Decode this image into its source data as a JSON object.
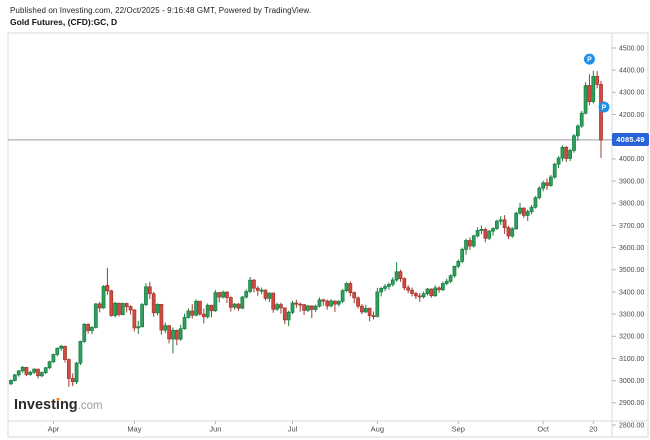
{
  "header": {
    "published_line": "Published on Investing.com, 22/Oct/2025 - 9:16:48 GMT, Powered by TradingView.",
    "instrument_line": "Gold Futures, (CFD):GC, D"
  },
  "logo": {
    "part1": "Invest",
    "part2": "i",
    "part3": "ng",
    "tld": ".com"
  },
  "chart_data": {
    "type": "candlestick",
    "title": "Gold Futures, (CFD):GC, D",
    "symbol": "(CFD):GC",
    "interval": "D",
    "ylim": [
      2800,
      4500
    ],
    "y_tick_step": 100,
    "grid": "off",
    "current_price": 4085.49,
    "current_price_label": "4085.49",
    "x_ticks": [
      {
        "label": "Apr",
        "index": 11
      },
      {
        "label": "May",
        "index": 32
      },
      {
        "label": "Jun",
        "index": 53
      },
      {
        "label": "Jul",
        "index": 73
      },
      {
        "label": "Aug",
        "index": 95
      },
      {
        "label": "Sep",
        "index": 116
      },
      {
        "label": "Oct",
        "index": 138
      },
      {
        "label": "20",
        "index": 151
      }
    ],
    "markers": [
      {
        "label": "P",
        "index": 150,
        "price": 4450,
        "dx": 0
      },
      {
        "label": "P",
        "index": 153,
        "price": 4234,
        "dx": 3
      }
    ],
    "colors": {
      "up_fill": "#2f9e5f",
      "up_border": "#177f40",
      "down_fill": "#d14b41",
      "down_border": "#a53830",
      "badge": "#2a62d8",
      "marker": "#1f8fe8",
      "price_line": "#9b9b9b",
      "axis_text": "#4a4a4a",
      "frame": "#d8d8d8"
    },
    "candles": [
      [
        2986,
        3006,
        2980,
        3001
      ],
      [
        3001,
        3030,
        2996,
        3026
      ],
      [
        3026,
        3048,
        3018,
        3044
      ],
      [
        3044,
        3066,
        3036,
        3060
      ],
      [
        3060,
        3062,
        3020,
        3028
      ],
      [
        3028,
        3044,
        3022,
        3038
      ],
      [
        3038,
        3056,
        3030,
        3052
      ],
      [
        3052,
        3054,
        3010,
        3022
      ],
      [
        3022,
        3042,
        3015,
        3036
      ],
      [
        3036,
        3062,
        3030,
        3058
      ],
      [
        3058,
        3090,
        3052,
        3085
      ],
      [
        3085,
        3122,
        3080,
        3118
      ],
      [
        3118,
        3150,
        3110,
        3146
      ],
      [
        3146,
        3162,
        3134,
        3155
      ],
      [
        3155,
        3158,
        3082,
        3095
      ],
      [
        3095,
        3100,
        2972,
        3010
      ],
      [
        3010,
        3032,
        2975,
        2995
      ],
      [
        2995,
        3085,
        2985,
        3079
      ],
      [
        3079,
        3180,
        3070,
        3177
      ],
      [
        3177,
        3260,
        3170,
        3254
      ],
      [
        3254,
        3258,
        3212,
        3226
      ],
      [
        3226,
        3246,
        3210,
        3240
      ],
      [
        3240,
        3350,
        3235,
        3346
      ],
      [
        3346,
        3356,
        3308,
        3328
      ],
      [
        3328,
        3430,
        3324,
        3425
      ],
      [
        3430,
        3509,
        3388,
        3405
      ],
      [
        3405,
        3410,
        3288,
        3294
      ],
      [
        3294,
        3356,
        3285,
        3349
      ],
      [
        3349,
        3352,
        3290,
        3298
      ],
      [
        3298,
        3352,
        3294,
        3348
      ],
      [
        3348,
        3352,
        3308,
        3334
      ],
      [
        3334,
        3340,
        3298,
        3319
      ],
      [
        3319,
        3322,
        3222,
        3238
      ],
      [
        3238,
        3270,
        3210,
        3243
      ],
      [
        3243,
        3350,
        3240,
        3343
      ],
      [
        3343,
        3440,
        3335,
        3423
      ],
      [
        3423,
        3446,
        3368,
        3392
      ],
      [
        3392,
        3400,
        3288,
        3306
      ],
      [
        3306,
        3348,
        3295,
        3344
      ],
      [
        3344,
        3346,
        3207,
        3228
      ],
      [
        3228,
        3262,
        3214,
        3248
      ],
      [
        3248,
        3250,
        3168,
        3188
      ],
      [
        3188,
        3240,
        3123,
        3227
      ],
      [
        3227,
        3230,
        3160,
        3187
      ],
      [
        3187,
        3252,
        3180,
        3234
      ],
      [
        3234,
        3302,
        3230,
        3285
      ],
      [
        3285,
        3326,
        3280,
        3314
      ],
      [
        3314,
        3345,
        3280,
        3295
      ],
      [
        3295,
        3366,
        3290,
        3358
      ],
      [
        3358,
        3360,
        3293,
        3300
      ],
      [
        3300,
        3325,
        3258,
        3288
      ],
      [
        3288,
        3348,
        3280,
        3340
      ],
      [
        3340,
        3342,
        3286,
        3315
      ],
      [
        3315,
        3408,
        3310,
        3397
      ],
      [
        3397,
        3400,
        3352,
        3377
      ],
      [
        3377,
        3406,
        3370,
        3399
      ],
      [
        3399,
        3404,
        3350,
        3375
      ],
      [
        3375,
        3380,
        3311,
        3331
      ],
      [
        3331,
        3350,
        3320,
        3345
      ],
      [
        3345,
        3350,
        3314,
        3327
      ],
      [
        3327,
        3382,
        3322,
        3377
      ],
      [
        3377,
        3412,
        3370,
        3402
      ],
      [
        3402,
        3468,
        3395,
        3453
      ],
      [
        3453,
        3458,
        3398,
        3417
      ],
      [
        3417,
        3426,
        3383,
        3407
      ],
      [
        3407,
        3420,
        3390,
        3408
      ],
      [
        3408,
        3412,
        3362,
        3371
      ],
      [
        3371,
        3398,
        3355,
        3395
      ],
      [
        3395,
        3397,
        3306,
        3322
      ],
      [
        3322,
        3352,
        3315,
        3343
      ],
      [
        3343,
        3352,
        3302,
        3328
      ],
      [
        3328,
        3330,
        3255,
        3274
      ],
      [
        3274,
        3316,
        3246,
        3308
      ],
      [
        3308,
        3360,
        3300,
        3350
      ],
      [
        3350,
        3365,
        3328,
        3345
      ],
      [
        3345,
        3352,
        3311,
        3343
      ],
      [
        3343,
        3346,
        3296,
        3317
      ],
      [
        3317,
        3342,
        3310,
        3337
      ],
      [
        3337,
        3340,
        3282,
        3321
      ],
      [
        3321,
        3342,
        3310,
        3336
      ],
      [
        3336,
        3375,
        3330,
        3364
      ],
      [
        3364,
        3370,
        3338,
        3359
      ],
      [
        3359,
        3366,
        3320,
        3337
      ],
      [
        3337,
        3368,
        3330,
        3359
      ],
      [
        3359,
        3362,
        3310,
        3345
      ],
      [
        3345,
        3362,
        3335,
        3358
      ],
      [
        3358,
        3412,
        3350,
        3406
      ],
      [
        3406,
        3444,
        3400,
        3438
      ],
      [
        3438,
        3448,
        3380,
        3397
      ],
      [
        3397,
        3402,
        3350,
        3373
      ],
      [
        3373,
        3380,
        3325,
        3336
      ],
      [
        3336,
        3345,
        3300,
        3310
      ],
      [
        3310,
        3342,
        3305,
        3326
      ],
      [
        3326,
        3330,
        3268,
        3293
      ],
      [
        3293,
        3312,
        3276,
        3290
      ],
      [
        3290,
        3418,
        3285,
        3400
      ],
      [
        3400,
        3422,
        3380,
        3416
      ],
      [
        3416,
        3436,
        3404,
        3425
      ],
      [
        3425,
        3442,
        3410,
        3434
      ],
      [
        3434,
        3466,
        3424,
        3454
      ],
      [
        3454,
        3534,
        3445,
        3491
      ],
      [
        3491,
        3500,
        3446,
        3460
      ],
      [
        3460,
        3466,
        3408,
        3419
      ],
      [
        3419,
        3430,
        3394,
        3408
      ],
      [
        3408,
        3420,
        3380,
        3393
      ],
      [
        3393,
        3400,
        3368,
        3382
      ],
      [
        3382,
        3396,
        3356,
        3378
      ],
      [
        3378,
        3402,
        3370,
        3392
      ],
      [
        3392,
        3418,
        3384,
        3413
      ],
      [
        3413,
        3416,
        3374,
        3383
      ],
      [
        3383,
        3430,
        3378,
        3418
      ],
      [
        3418,
        3426,
        3396,
        3410
      ],
      [
        3410,
        3446,
        3404,
        3438
      ],
      [
        3438,
        3460,
        3430,
        3448
      ],
      [
        3448,
        3480,
        3440,
        3473
      ],
      [
        3473,
        3518,
        3464,
        3516
      ],
      [
        3516,
        3546,
        3508,
        3538
      ],
      [
        3538,
        3600,
        3530,
        3592
      ],
      [
        3592,
        3640,
        3568,
        3632
      ],
      [
        3632,
        3646,
        3590,
        3607
      ],
      [
        3607,
        3658,
        3600,
        3653
      ],
      [
        3653,
        3692,
        3646,
        3677
      ],
      [
        3677,
        3700,
        3660,
        3682
      ],
      [
        3682,
        3690,
        3624,
        3642
      ],
      [
        3642,
        3680,
        3634,
        3674
      ],
      [
        3674,
        3692,
        3654,
        3686
      ],
      [
        3686,
        3726,
        3680,
        3719
      ],
      [
        3719,
        3742,
        3702,
        3725
      ],
      [
        3725,
        3746,
        3662,
        3690
      ],
      [
        3690,
        3698,
        3638,
        3652
      ],
      [
        3652,
        3692,
        3644,
        3685
      ],
      [
        3685,
        3762,
        3680,
        3755
      ],
      [
        3755,
        3802,
        3748,
        3778
      ],
      [
        3778,
        3782,
        3734,
        3745
      ],
      [
        3745,
        3772,
        3720,
        3762
      ],
      [
        3762,
        3792,
        3750,
        3782
      ],
      [
        3782,
        3832,
        3776,
        3825
      ],
      [
        3825,
        3876,
        3818,
        3868
      ],
      [
        3868,
        3902,
        3854,
        3892
      ],
      [
        3892,
        3912,
        3860,
        3880
      ],
      [
        3880,
        3928,
        3874,
        3918
      ],
      [
        3918,
        3982,
        3910,
        3976
      ],
      [
        3976,
        4012,
        3958,
        4004
      ],
      [
        4004,
        4062,
        3988,
        4052
      ],
      [
        4052,
        4058,
        3986,
        4002
      ],
      [
        4002,
        4046,
        3990,
        4038
      ],
      [
        4038,
        4112,
        4028,
        4104
      ],
      [
        4104,
        4156,
        4082,
        4148
      ],
      [
        4148,
        4216,
        4140,
        4206
      ],
      [
        4206,
        4346,
        4200,
        4331
      ],
      [
        4331,
        4382,
        4242,
        4258
      ],
      [
        4258,
        4398,
        4250,
        4372
      ],
      [
        4372,
        4396,
        4318,
        4336
      ],
      [
        4336,
        4352,
        4004,
        4085
      ]
    ]
  }
}
